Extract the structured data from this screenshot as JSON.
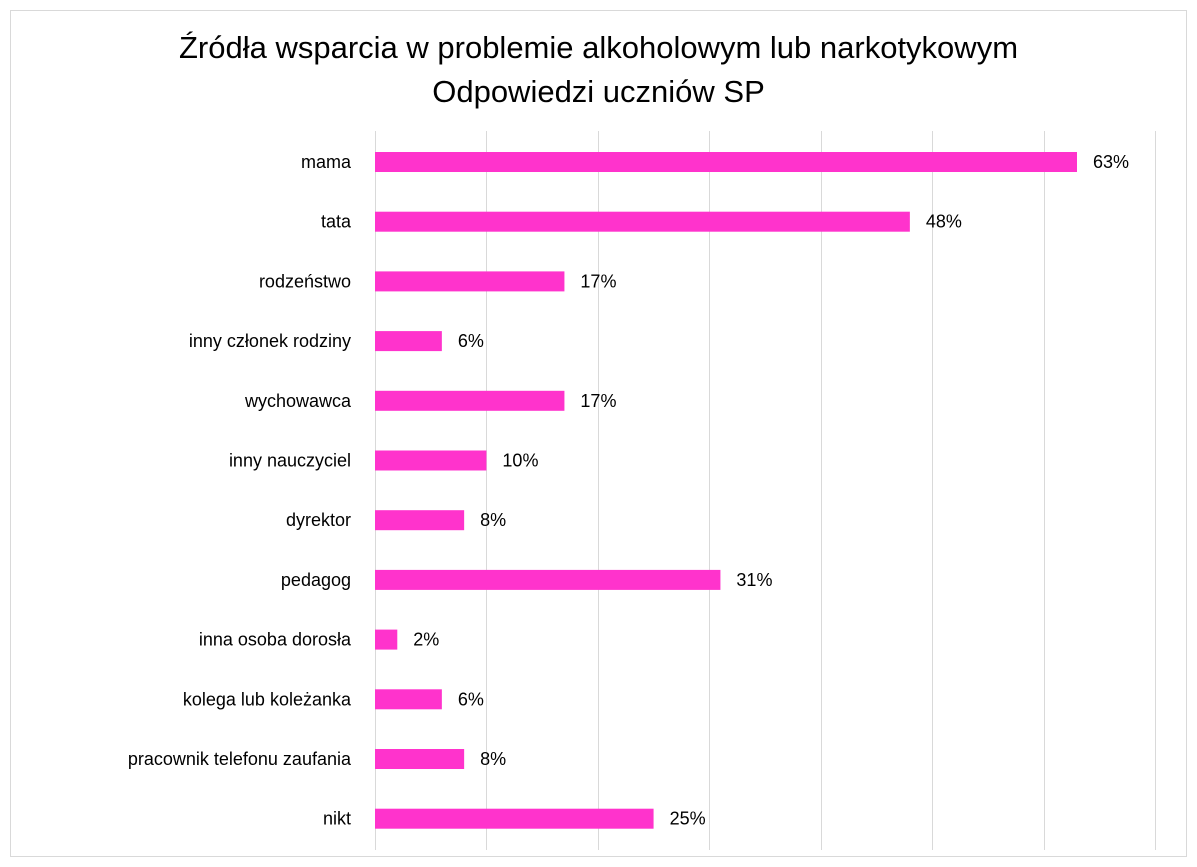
{
  "chart_data": {
    "type": "bar",
    "orientation": "horizontal",
    "title": "Źródła wsparcia w problemie alkoholowym lub narkotykowym",
    "subtitle": "Odpowiedzi uczniów SP",
    "categories": [
      "mama",
      "tata",
      "rodzeństwo",
      "inny członek rodziny",
      "wychowawca",
      "inny nauczyciel",
      "dyrektor",
      "pedagog",
      "inna osoba dorosła",
      "kolega lub koleżanka",
      "pracownik telefonu zaufania",
      "nikt"
    ],
    "values": [
      63,
      48,
      17,
      6,
      17,
      10,
      8,
      31,
      2,
      6,
      8,
      25
    ],
    "value_labels": [
      "63%",
      "48%",
      "17%",
      "6%",
      "17%",
      "10%",
      "8%",
      "31%",
      "2%",
      "6%",
      "8%",
      "25%"
    ],
    "xlim": [
      0,
      70
    ],
    "grid": true,
    "legend": "none",
    "bar_color": "#ff33cc",
    "grid_color": "#d9d9d9"
  }
}
